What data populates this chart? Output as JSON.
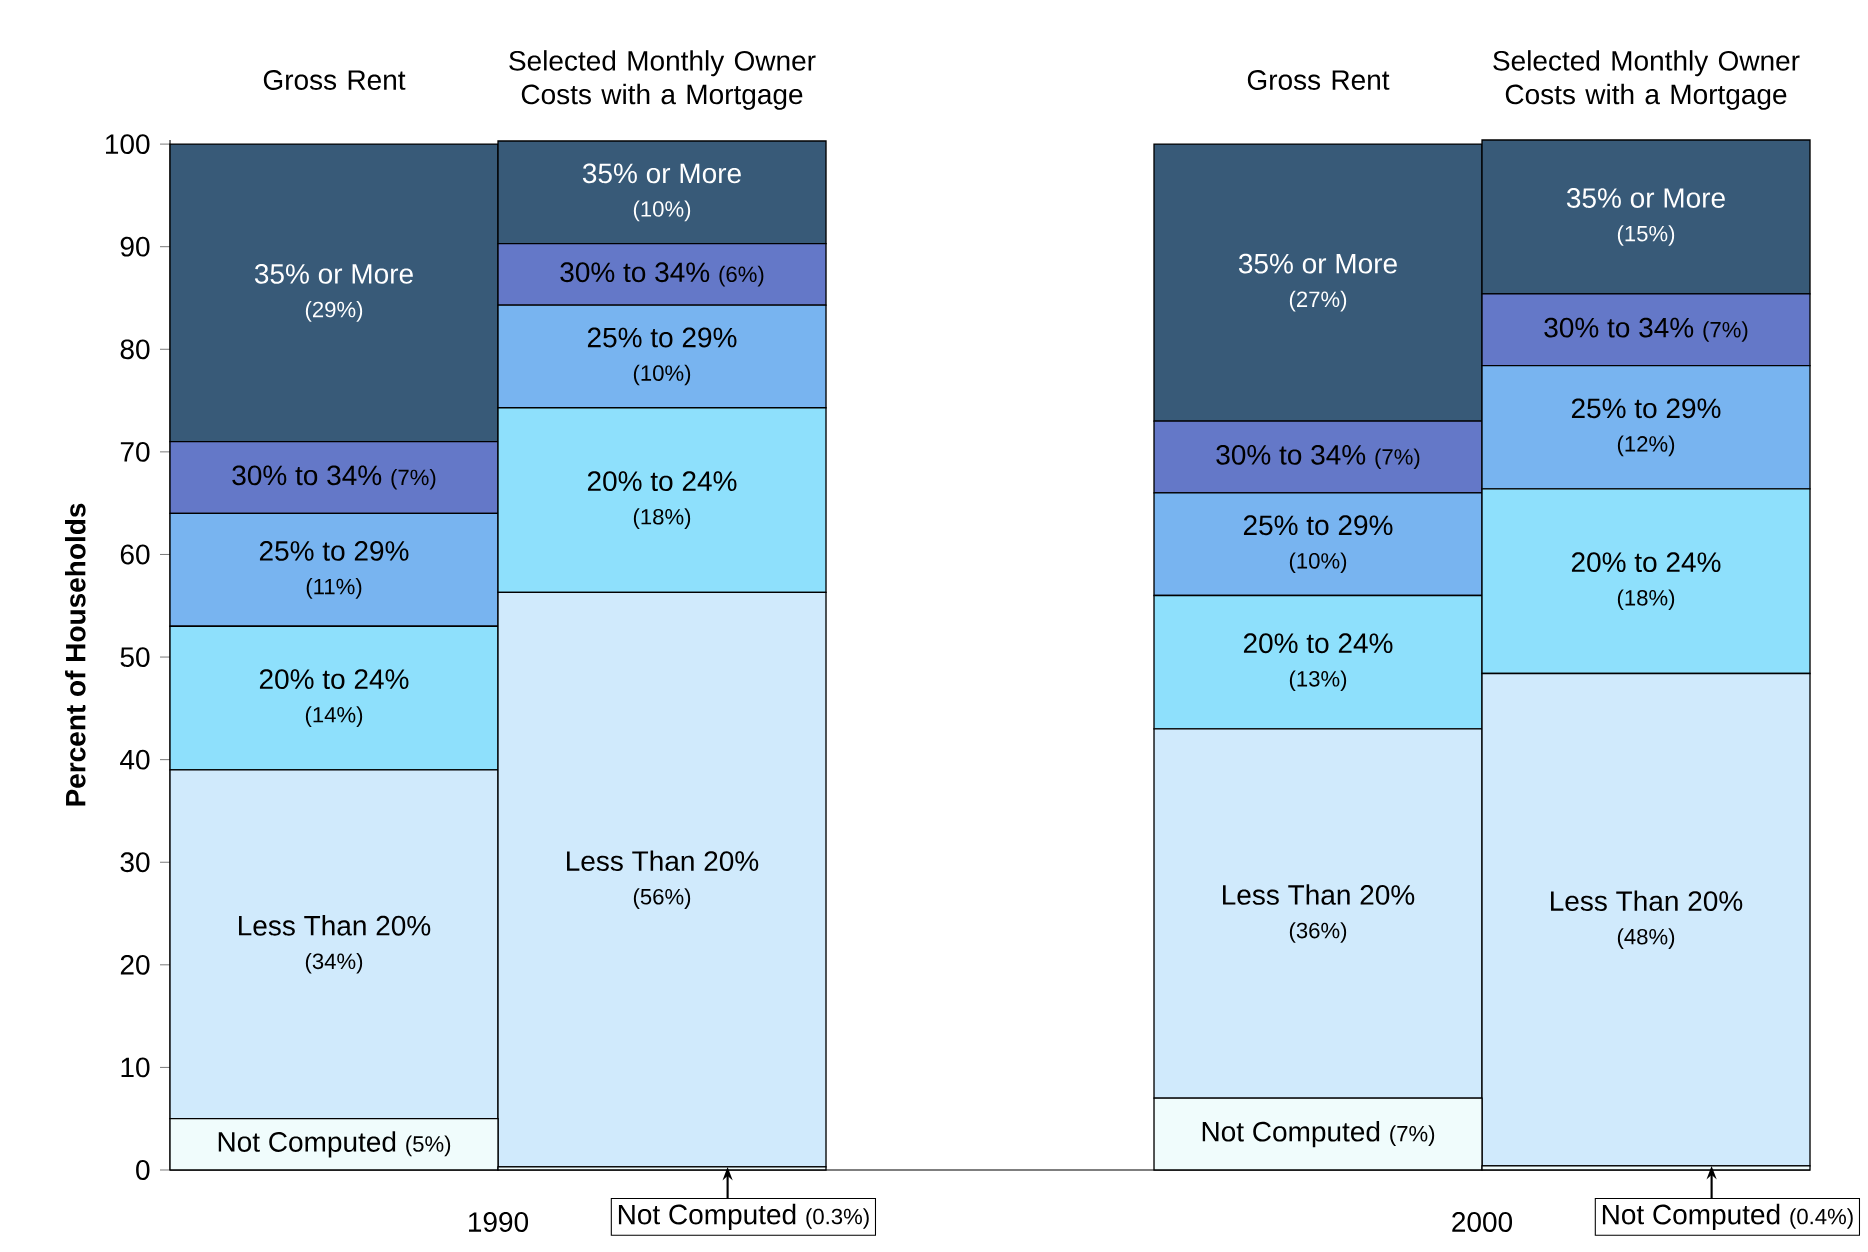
{
  "chart_data": {
    "type": "bar",
    "stacked": true,
    "ylabel": "Percent of Households",
    "categories": [
      "Gross Rent",
      "Selected Monthly Owner Costs with a Mortgage",
      null,
      "Gross Rent",
      "Selected Monthly Owner Costs with a Mortgage"
    ],
    "annotations": [
      "1990",
      "2000"
    ],
    "ylim": [
      0,
      100.4
    ],
    "yticks": [
      0,
      10,
      20,
      30,
      40,
      50,
      60,
      70,
      80,
      90,
      100
    ],
    "series": [
      {
        "name": "Not Computed",
        "color": "#f0fcfc",
        "values": [
          5,
          0.3,
          null,
          7,
          0.4
        ],
        "value_labels": [
          "(5%)",
          "(0.3%)",
          null,
          "(7%)",
          "(0.4%)"
        ]
      },
      {
        "name": "Less Than 20%",
        "color": "#d0eafc",
        "values": [
          34,
          56,
          null,
          36,
          48
        ],
        "value_labels": [
          "(34%)",
          "(56%)",
          null,
          "(36%)",
          "(48%)"
        ]
      },
      {
        "name": "20% to 24%",
        "color": "#8ee0fc",
        "values": [
          14,
          18,
          null,
          13,
          18
        ],
        "value_labels": [
          "(14%)",
          "(18%)",
          null,
          "(13%)",
          "(18%)"
        ]
      },
      {
        "name": "25% to 29%",
        "color": "#78b4f0",
        "values": [
          11,
          10,
          null,
          10,
          12
        ],
        "value_labels": [
          "(11%)",
          "(10%)",
          null,
          "(10%)",
          "(12%)"
        ]
      },
      {
        "name": "30% to 34%",
        "color": "#6478c8",
        "values": [
          7,
          6,
          null,
          7,
          7
        ],
        "value_labels": [
          "(7%)",
          "(6%)",
          null,
          "(7%)",
          "(7%)"
        ]
      },
      {
        "name": "35% or More",
        "color": "#385a78",
        "values": [
          29,
          10,
          null,
          27,
          15
        ],
        "value_labels": [
          "(29%)",
          "(10%)",
          null,
          "(27%)",
          "(15%)"
        ]
      }
    ]
  }
}
